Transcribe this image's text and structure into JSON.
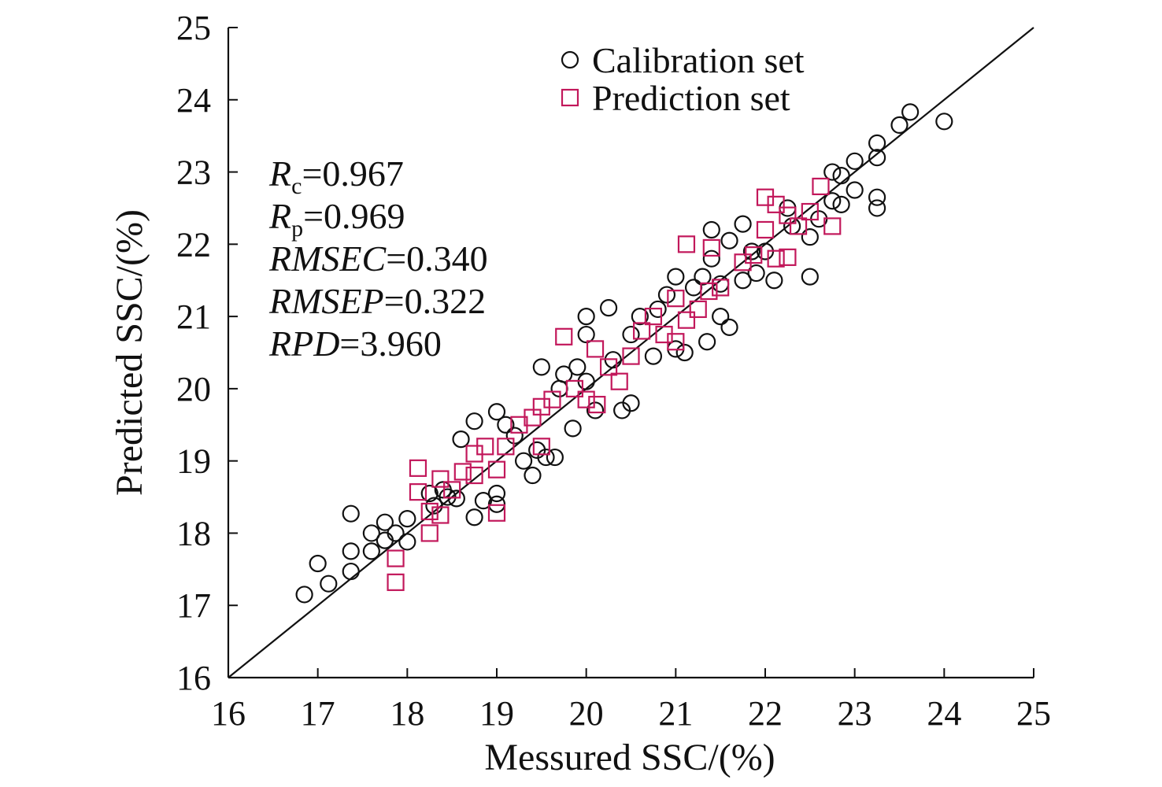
{
  "chart_data": {
    "type": "scatter",
    "xlabel": "Messured SSC/(%)",
    "ylabel": "Predicted SSC/(%)",
    "xlim": [
      16,
      25
    ],
    "ylim": [
      16,
      25
    ],
    "xticks": [
      "16",
      "17",
      "18",
      "19",
      "20",
      "21",
      "22",
      "23",
      "24",
      "25"
    ],
    "yticks": [
      "16",
      "17",
      "18",
      "19",
      "20",
      "21",
      "22",
      "23",
      "24",
      "25"
    ],
    "grid": false,
    "legend_position": "top-right",
    "reference_line": {
      "x": [
        16,
        25
      ],
      "y": [
        16,
        25
      ],
      "color": "#111111"
    },
    "stats": [
      {
        "var": "R",
        "sub": "c",
        "val": "=0.967"
      },
      {
        "var": "R",
        "sub": "p",
        "val": "=0.969"
      },
      {
        "var": "RMSEC",
        "sub": "",
        "val": "=0.340"
      },
      {
        "var": "RMSEP",
        "sub": "",
        "val": "=0.322"
      },
      {
        "var": "RPD",
        "sub": "",
        "val": "=3.960"
      }
    ],
    "series": [
      {
        "name": "Calibration set",
        "marker": "circle",
        "color": "#111111",
        "points": [
          [
            16.85,
            17.15
          ],
          [
            17.0,
            17.58
          ],
          [
            17.12,
            17.3
          ],
          [
            17.37,
            17.75
          ],
          [
            17.37,
            17.47
          ],
          [
            17.37,
            18.27
          ],
          [
            17.6,
            18.0
          ],
          [
            17.6,
            17.75
          ],
          [
            17.75,
            18.15
          ],
          [
            17.75,
            17.9
          ],
          [
            17.87,
            18.0
          ],
          [
            18.0,
            18.2
          ],
          [
            18.0,
            17.88
          ],
          [
            18.25,
            18.55
          ],
          [
            18.3,
            18.38
          ],
          [
            18.4,
            18.6
          ],
          [
            18.45,
            18.5
          ],
          [
            18.55,
            18.48
          ],
          [
            18.6,
            19.3
          ],
          [
            18.75,
            19.55
          ],
          [
            18.75,
            18.22
          ],
          [
            18.85,
            18.45
          ],
          [
            19.0,
            19.68
          ],
          [
            19.0,
            18.55
          ],
          [
            19.0,
            18.4
          ],
          [
            19.1,
            19.5
          ],
          [
            19.2,
            19.35
          ],
          [
            19.3,
            19.0
          ],
          [
            19.4,
            18.8
          ],
          [
            19.45,
            19.15
          ],
          [
            19.5,
            20.3
          ],
          [
            19.55,
            19.05
          ],
          [
            19.65,
            19.05
          ],
          [
            19.7,
            20.0
          ],
          [
            19.75,
            20.2
          ],
          [
            19.85,
            19.45
          ],
          [
            19.9,
            20.3
          ],
          [
            20.0,
            21.0
          ],
          [
            20.0,
            20.75
          ],
          [
            20.0,
            20.1
          ],
          [
            20.1,
            19.7
          ],
          [
            20.25,
            21.12
          ],
          [
            20.3,
            20.4
          ],
          [
            20.4,
            19.7
          ],
          [
            20.5,
            19.8
          ],
          [
            20.5,
            20.75
          ],
          [
            20.6,
            21.0
          ],
          [
            20.75,
            20.45
          ],
          [
            20.8,
            21.1
          ],
          [
            20.9,
            21.3
          ],
          [
            21.0,
            21.55
          ],
          [
            21.0,
            20.55
          ],
          [
            21.1,
            20.5
          ],
          [
            21.2,
            21.4
          ],
          [
            21.3,
            21.55
          ],
          [
            21.35,
            20.65
          ],
          [
            21.4,
            21.8
          ],
          [
            21.4,
            22.2
          ],
          [
            21.5,
            21.0
          ],
          [
            21.5,
            21.45
          ],
          [
            21.6,
            20.85
          ],
          [
            21.6,
            22.05
          ],
          [
            21.75,
            22.28
          ],
          [
            21.75,
            21.5
          ],
          [
            21.85,
            21.9
          ],
          [
            21.9,
            21.6
          ],
          [
            22.0,
            21.9
          ],
          [
            22.1,
            21.5
          ],
          [
            22.25,
            22.5
          ],
          [
            22.3,
            22.25
          ],
          [
            22.5,
            22.1
          ],
          [
            22.5,
            21.55
          ],
          [
            22.6,
            22.35
          ],
          [
            22.75,
            23.0
          ],
          [
            22.75,
            22.6
          ],
          [
            22.85,
            22.55
          ],
          [
            22.85,
            22.95
          ],
          [
            23.0,
            23.15
          ],
          [
            23.0,
            22.75
          ],
          [
            23.25,
            23.4
          ],
          [
            23.25,
            23.2
          ],
          [
            23.25,
            22.65
          ],
          [
            23.25,
            22.5
          ],
          [
            23.5,
            23.65
          ],
          [
            23.62,
            23.83
          ],
          [
            24.0,
            23.7
          ]
        ]
      },
      {
        "name": "Prediction set",
        "marker": "square",
        "color": "#c2185b",
        "points": [
          [
            17.87,
            17.65
          ],
          [
            17.87,
            17.32
          ],
          [
            18.12,
            18.9
          ],
          [
            18.12,
            18.57
          ],
          [
            18.25,
            18.0
          ],
          [
            18.25,
            18.3
          ],
          [
            18.37,
            18.25
          ],
          [
            18.37,
            18.75
          ],
          [
            18.5,
            18.6
          ],
          [
            18.62,
            18.85
          ],
          [
            18.75,
            19.1
          ],
          [
            18.75,
            18.8
          ],
          [
            18.87,
            19.2
          ],
          [
            19.0,
            18.88
          ],
          [
            19.0,
            18.28
          ],
          [
            19.1,
            19.2
          ],
          [
            19.25,
            19.5
          ],
          [
            19.4,
            19.6
          ],
          [
            19.5,
            19.2
          ],
          [
            19.5,
            19.75
          ],
          [
            19.62,
            19.85
          ],
          [
            19.75,
            20.72
          ],
          [
            19.87,
            20.0
          ],
          [
            20.0,
            19.85
          ],
          [
            20.1,
            20.55
          ],
          [
            20.12,
            19.78
          ],
          [
            20.25,
            20.3
          ],
          [
            20.37,
            20.1
          ],
          [
            20.5,
            20.45
          ],
          [
            20.62,
            20.8
          ],
          [
            20.75,
            21.0
          ],
          [
            20.87,
            20.75
          ],
          [
            21.0,
            21.25
          ],
          [
            21.0,
            20.65
          ],
          [
            21.12,
            22.0
          ],
          [
            21.12,
            20.95
          ],
          [
            21.25,
            21.1
          ],
          [
            21.37,
            21.35
          ],
          [
            21.4,
            21.95
          ],
          [
            21.5,
            21.4
          ],
          [
            21.75,
            21.75
          ],
          [
            21.87,
            21.85
          ],
          [
            22.0,
            22.65
          ],
          [
            22.0,
            22.2
          ],
          [
            22.12,
            21.8
          ],
          [
            22.12,
            22.55
          ],
          [
            22.25,
            22.4
          ],
          [
            22.25,
            21.82
          ],
          [
            22.37,
            22.25
          ],
          [
            22.5,
            22.45
          ],
          [
            22.62,
            22.8
          ],
          [
            22.75,
            22.25
          ]
        ]
      }
    ]
  }
}
